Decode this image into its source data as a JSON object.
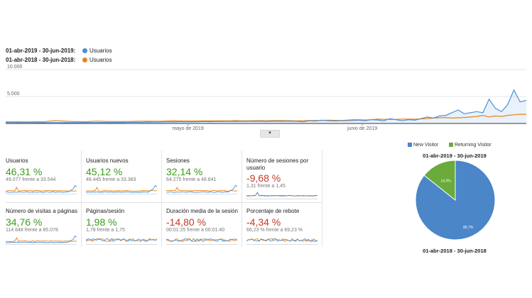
{
  "legend": [
    {
      "range": "01-abr-2019 - 30-jun-2019:",
      "series": "Usuarios",
      "color": "#4d8fd6"
    },
    {
      "range": "01-abr-2018 - 30-jun-2018:",
      "series": "Usuarios",
      "color": "#e7841b"
    }
  ],
  "chart_data": {
    "type": "line",
    "y_ticks": [
      "10.000",
      "5.000"
    ],
    "ylim": [
      0,
      10000
    ],
    "x_ticks": [
      "mayo de 2019",
      "junio de 2019"
    ],
    "series": [
      {
        "name": "01-abr-2019 - 30-jun-2019: Usuarios",
        "color": "#4d8fd6",
        "values": [
          180,
          170,
          160,
          180,
          170,
          160,
          150,
          170,
          170,
          160,
          150,
          170,
          160,
          180,
          170,
          180,
          190,
          180,
          200,
          190,
          220,
          210,
          200,
          250,
          240,
          260,
          300,
          280,
          320,
          300,
          320,
          300,
          350,
          330,
          370,
          360,
          380,
          380,
          370,
          390,
          400,
          410,
          380,
          400,
          420,
          410,
          420,
          400,
          300,
          500,
          450,
          600,
          500,
          480,
          500,
          520,
          550,
          600,
          500,
          700,
          650,
          500,
          900,
          700,
          500,
          700,
          600,
          900,
          1200,
          1000,
          1400,
          1500,
          2000,
          2500,
          1800,
          2000,
          2200,
          2000,
          4500,
          2800,
          2200,
          3500,
          6200,
          4000,
          4300
        ]
      },
      {
        "name": "01-abr-2018 - 30-jun-2018: Usuarios",
        "color": "#e7841b",
        "values": [
          300,
          300,
          310,
          290,
          300,
          310,
          300,
          420,
          520,
          460,
          400,
          350,
          330,
          320,
          400,
          430,
          380,
          350,
          360,
          370,
          350,
          390,
          430,
          410,
          420,
          420,
          450,
          470,
          460,
          450,
          450,
          460,
          480,
          470,
          480,
          500,
          490,
          520,
          500,
          500,
          510,
          520,
          500,
          520,
          540,
          520,
          510,
          490,
          520,
          550,
          540,
          560,
          600,
          580,
          560,
          600,
          700,
          680,
          650,
          700,
          800,
          780,
          750,
          760,
          800,
          820,
          790,
          850,
          900,
          1000,
          1050,
          1100,
          1000,
          1050,
          1100,
          1200,
          1300,
          1500,
          1200,
          1400,
          1300,
          1500,
          1600,
          1700,
          1700
        ]
      }
    ],
    "pie": {
      "title": "01-abr-2019 - 30-jun-2019",
      "bottom_title": "01-abr-2018 - 30-jun-2018",
      "slices": [
        {
          "name": "New Visitor",
          "value": 85.7,
          "label": "85,7%",
          "color": "#4a86c8"
        },
        {
          "name": "Returning Visitor",
          "value": 14.3,
          "label": "14,3%",
          "color": "#6aab3c"
        }
      ]
    }
  },
  "collapse_icon": "triangle-down-icon",
  "cards": [
    {
      "label": "Usuarios",
      "value": "46,31 %",
      "trend": "pos",
      "sub": "49.077 frente a 33.544",
      "spark": "up"
    },
    {
      "label": "Usuarios nuevos",
      "value": "45,12 %",
      "trend": "pos",
      "sub": "48.445 frente a 33.383",
      "spark": "up"
    },
    {
      "label": "Sesiones",
      "value": "32,14 %",
      "trend": "pos",
      "sub": "64.275 frente a 48.641",
      "spark": "up"
    },
    {
      "label": "Número de sesiones por usuario",
      "value": "-9,68 %",
      "trend": "neg",
      "sub": "1,31 frente a 1,45",
      "spark": "flat"
    },
    {
      "label": "Número de visitas a páginas",
      "value": "34,76 %",
      "trend": "pos",
      "sub": "114.648 frente a 85.078",
      "spark": "up"
    },
    {
      "label": "Páginas/sesión",
      "value": "1,98 %",
      "trend": "pos",
      "sub": "1,78 frente a 1,75",
      "spark": "noisy"
    },
    {
      "label": "Duración media de la sesión",
      "value": "-14,80 %",
      "trend": "neg",
      "sub": "00:01:25 frente a 00:01:40",
      "spark": "noisy"
    },
    {
      "label": "Porcentaje de rebote",
      "value": "-4,34 %",
      "trend": "neg",
      "sub": "66,23 % frente a 69,23 %",
      "spark": "noisy"
    }
  ]
}
